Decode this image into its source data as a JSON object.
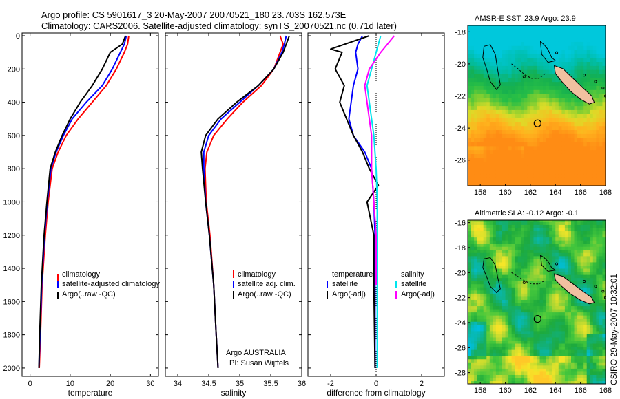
{
  "title_line1": "Argo profile: CS 5901617_3 20-May-2007 20070521_180 23.703S 162.573E",
  "title_line2": "Climatology: CARS2006. Satellite-adjusted climatology: synTS_20070521.nc (0.71d later)",
  "side_label": "CSIRO 29-May-2007 10:32:01",
  "colors": {
    "climatology": "#ff0000",
    "satellite": "#0000ff",
    "argo": "#000000",
    "cyan": "#00e5ee",
    "magenta": "#ff00ff",
    "land": "#f0c0a0"
  },
  "chart_data": [
    {
      "type": "line",
      "xlabel": "temperature",
      "xlim": [
        -2,
        32
      ],
      "ylim": [
        0,
        2050
      ],
      "xticks": [
        0,
        10,
        20,
        30
      ],
      "yticks": [
        0,
        200,
        400,
        600,
        800,
        1000,
        1200,
        1400,
        1600,
        1800,
        2000
      ],
      "y_reversed": true,
      "legend_position": "lower-right",
      "series": [
        {
          "name": "climatology",
          "color": "#ff0000",
          "x": [
            24.6,
            24.3,
            23.5,
            21.5,
            19.0,
            15.5,
            12.0,
            9.0,
            7.0,
            5.5,
            4.5,
            3.8,
            3.0,
            2.6,
            2.3
          ],
          "y": [
            0,
            50,
            100,
            200,
            300,
            400,
            500,
            600,
            700,
            800,
            1000,
            1200,
            1500,
            1800,
            2000
          ]
        },
        {
          "name": "satellite-adjusted climatology",
          "color": "#0000ff",
          "x": [
            24.0,
            23.5,
            22.5,
            20.5,
            18.0,
            14.0,
            10.5,
            8.3,
            6.5,
            5.2,
            4.3,
            3.6,
            2.9,
            2.5,
            2.2
          ],
          "y": [
            0,
            50,
            100,
            200,
            300,
            400,
            500,
            600,
            700,
            800,
            1000,
            1200,
            1500,
            1800,
            2000
          ]
        },
        {
          "name": "Argo(..raw -QC)",
          "color": "#000000",
          "x": [
            23.8,
            23.0,
            20.0,
            18.0,
            15.5,
            12.5,
            10.0,
            8.0,
            6.3,
            5.0,
            4.2,
            3.5,
            2.8,
            2.4,
            2.2
          ],
          "y": [
            0,
            50,
            100,
            200,
            300,
            400,
            500,
            600,
            700,
            800,
            1000,
            1200,
            1500,
            1800,
            2000
          ]
        }
      ]
    },
    {
      "type": "line",
      "xlabel": "salinity",
      "xlim": [
        33.8,
        36.0
      ],
      "ylim": [
        0,
        2050
      ],
      "xticks": [
        34,
        34.5,
        35,
        35.5,
        36
      ],
      "yticks": [
        0,
        200,
        400,
        600,
        800,
        1000,
        1200,
        1400,
        1600,
        1800,
        2000
      ],
      "y_reversed": true,
      "legend_position": "lower-right",
      "series": [
        {
          "name": "climatology",
          "color": "#ff0000",
          "x": [
            35.65,
            35.7,
            35.65,
            35.55,
            35.35,
            35.05,
            34.8,
            34.58,
            34.47,
            34.44,
            34.46,
            34.52,
            34.58,
            34.62,
            34.65
          ],
          "y": [
            0,
            50,
            100,
            200,
            300,
            400,
            500,
            600,
            700,
            800,
            1000,
            1200,
            1500,
            1800,
            2000
          ]
        },
        {
          "name": "satellite adj. clim.",
          "color": "#0000ff",
          "x": [
            35.75,
            35.72,
            35.68,
            35.55,
            35.3,
            35.0,
            34.7,
            34.5,
            34.42,
            34.42,
            34.45,
            34.51,
            34.58,
            34.62,
            34.65
          ],
          "y": [
            0,
            50,
            100,
            200,
            300,
            400,
            500,
            600,
            700,
            800,
            1000,
            1200,
            1500,
            1800,
            2000
          ]
        },
        {
          "name": "Argo(..raw -QC)",
          "color": "#000000",
          "x": [
            35.8,
            35.75,
            35.7,
            35.55,
            35.3,
            34.95,
            34.65,
            34.45,
            34.38,
            34.4,
            34.45,
            34.51,
            34.58,
            34.62,
            34.65
          ],
          "y": [
            0,
            50,
            100,
            200,
            300,
            400,
            500,
            600,
            700,
            800,
            1000,
            1200,
            1500,
            1800,
            2000
          ]
        }
      ]
    },
    {
      "type": "line",
      "xlabel": "difference from climatology",
      "xlim": [
        -3,
        3
      ],
      "ylim": [
        0,
        2050
      ],
      "xticks": [
        -2,
        0,
        2
      ],
      "yticks": [
        0,
        200,
        400,
        600,
        800,
        1000,
        1200,
        1400,
        1600,
        1800,
        2000
      ],
      "y_reversed": true,
      "legend_position": "center",
      "legend_titles": [
        "temperature",
        "salinity"
      ],
      "series": [
        {
          "name": "satellite",
          "group": "temperature",
          "color": "#0000ff",
          "x": [
            -0.6,
            -0.8,
            -0.9,
            -0.8,
            -1.0,
            -1.1,
            -1.2,
            -1.0,
            -0.5,
            -0.2,
            -0.1,
            -0.05,
            -0.05,
            -0.05
          ],
          "y": [
            0,
            50,
            100,
            200,
            300,
            400,
            500,
            600,
            700,
            800,
            1000,
            1200,
            1500,
            2000
          ]
        },
        {
          "name": "Argo(-adj)",
          "group": "temperature",
          "color": "#000000",
          "x": [
            -0.3,
            -2.0,
            -1.5,
            -1.8,
            -1.4,
            -1.6,
            -1.3,
            -1.0,
            -0.6,
            -0.3,
            0.1,
            -0.4,
            -0.1,
            -0.1,
            -0.05
          ],
          "y": [
            0,
            80,
            100,
            200,
            300,
            400,
            500,
            600,
            700,
            800,
            900,
            1000,
            1200,
            1500,
            2000
          ]
        },
        {
          "name": "satellite",
          "group": "salinity",
          "color": "#00e5ee",
          "x": [
            0.2,
            0.1,
            0.0,
            -0.2,
            -0.4,
            -0.3,
            -0.1,
            0.0,
            0.05,
            0.05,
            0.05,
            0.05
          ],
          "y": [
            0,
            50,
            100,
            200,
            300,
            400,
            600,
            800,
            1000,
            1200,
            1500,
            2000
          ]
        },
        {
          "name": "Argo(-adj)",
          "group": "salinity",
          "color": "#ff00ff",
          "x": [
            0.8,
            0.5,
            0.2,
            -0.3,
            -0.5,
            -0.4,
            -0.2,
            -0.2,
            -0.1,
            0.0,
            0.0
          ],
          "y": [
            0,
            50,
            100,
            200,
            300,
            400,
            600,
            800,
            1000,
            1200,
            1500
          ]
        }
      ]
    },
    {
      "type": "heatmap",
      "title": "AMSR-E SST: 23.9 Argo: 23.9",
      "xlim": [
        157,
        168
      ],
      "ylim": [
        -27.6,
        -17.6
      ],
      "xticks": [
        158,
        160,
        162,
        164,
        166,
        168
      ],
      "yticks": [
        -18,
        -20,
        -22,
        -24,
        -26,
        -28
      ],
      "marker": {
        "lon": 162.573,
        "lat": -23.703
      }
    },
    {
      "type": "heatmap",
      "title": "Altimetric SLA: -0.12 Argo: -0.1",
      "xlim": [
        157,
        168
      ],
      "ylim": [
        -28.9,
        -15.8
      ],
      "xticks": [
        158,
        160,
        162,
        164,
        166,
        168
      ],
      "yticks": [
        -16,
        -18,
        -20,
        -22,
        -24,
        -26,
        -28
      ],
      "marker": {
        "lon": 162.573,
        "lat": -23.703
      }
    }
  ],
  "legends": {
    "temperature": [
      "climatology",
      "satellite-adjusted climatology",
      "Argo(..raw -QC)"
    ],
    "salinity": [
      "climatology",
      "satellite adj. clim.",
      "Argo(..raw -QC)"
    ],
    "difference": {
      "left_title": "temperature",
      "right_title": "salinity",
      "left": [
        "satellite",
        "Argo(-adj)"
      ],
      "right": [
        "satellite",
        "Argo(-adj)"
      ]
    }
  },
  "annotations": {
    "line1": "Argo AUSTRALIA",
    "line2": "PI: Susan Wijffels"
  }
}
